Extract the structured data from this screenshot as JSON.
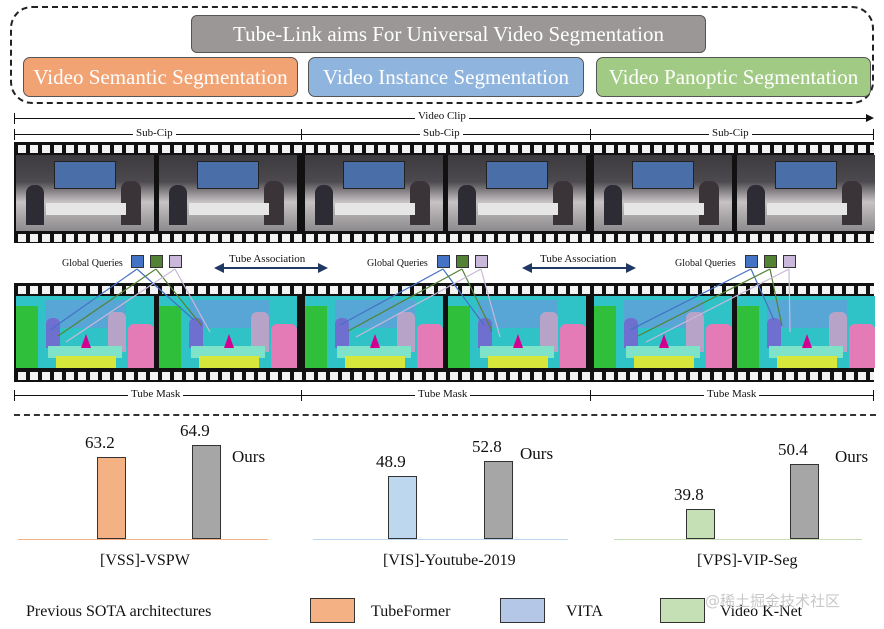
{
  "header": {
    "title": "Tube-Link aims For Universal Video Segmentation",
    "tasks": [
      "Video Semantic Segmentation",
      "Video Instance Segmentation",
      "Video Panoptic Segmentation"
    ]
  },
  "diagram": {
    "video_clip_label": "Video Clip",
    "sub_clip_labels": [
      "Sub-Cip",
      "Sub-Cip",
      "Sub-Cip"
    ],
    "global_queries_labels": [
      "Global Queries",
      "Global Queries",
      "Global Queries"
    ],
    "tube_association_labels": [
      "Tube Association",
      "Tube Association"
    ],
    "tube_mask_labels": [
      "Tube Mask",
      "Tube Mask",
      "Tube Mask"
    ],
    "query_colors": [
      "#4472c4",
      "#548235",
      "#c9b8d9"
    ]
  },
  "chart_data": [
    {
      "type": "bar",
      "dataset": "[VSS]-VSPW",
      "categories": [
        "TubeFormer",
        "Ours"
      ],
      "values": [
        63.2,
        64.9
      ],
      "value_labels": [
        "63.2",
        "64.9"
      ],
      "annotation": "Ours",
      "colors": [
        "#f4b183",
        "#a6a6a6"
      ]
    },
    {
      "type": "bar",
      "dataset": "[VIS]-Youtube-2019",
      "categories": [
        "VITA",
        "Ours"
      ],
      "values": [
        48.9,
        52.8
      ],
      "value_labels": [
        "48.9",
        "52.8"
      ],
      "annotation": "Ours",
      "colors": [
        "#bdd7ee",
        "#a6a6a6"
      ]
    },
    {
      "type": "bar",
      "dataset": "[VPS]-VIP-Seg",
      "categories": [
        "Video K-Net",
        "Ours"
      ],
      "values": [
        39.8,
        50.4
      ],
      "value_labels": [
        "39.8",
        "50.4"
      ],
      "annotation": "Ours",
      "colors": [
        "#c5e0b4",
        "#a6a6a6"
      ]
    }
  ],
  "legend": {
    "title": "Previous SOTA architectures",
    "items": [
      {
        "label": "TubeFormer",
        "color": "#f4b183"
      },
      {
        "label": "VITA",
        "color": "#b4c7e7"
      },
      {
        "label": "Video K-Net",
        "color": "#c5e0b4"
      }
    ]
  },
  "watermark": "@稀土掘金技术社区"
}
